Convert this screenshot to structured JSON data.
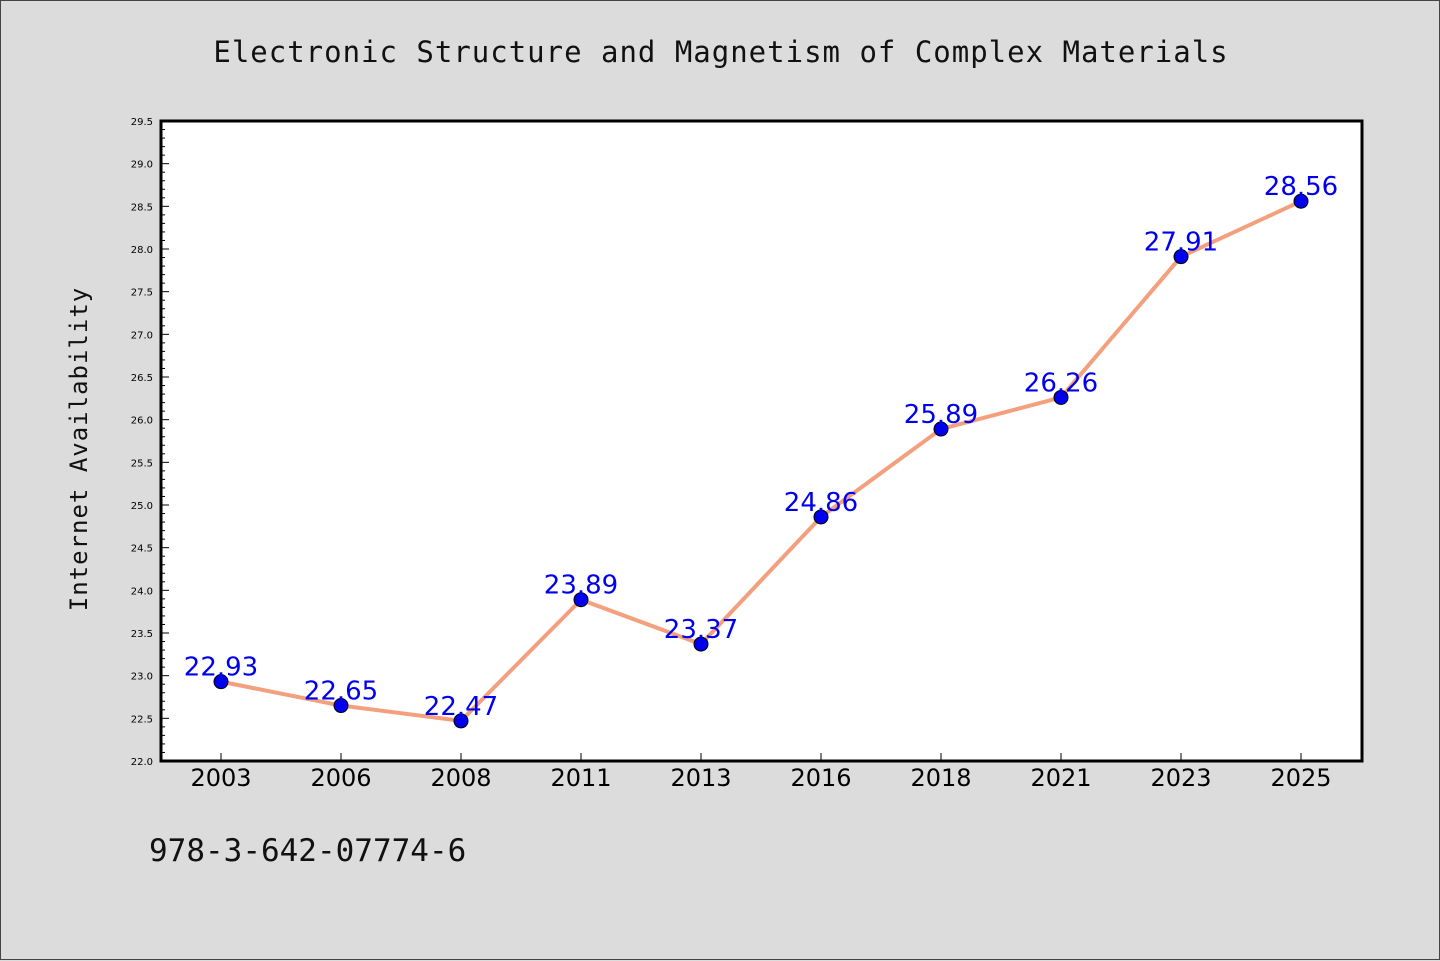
{
  "isbn": "978-3-642-07774-6",
  "colors": {
    "line": "#f4a07e",
    "marker": "#0000ee",
    "label": "#0000ee",
    "background": "#dcdcdc",
    "plot_bg": "#ffffff"
  },
  "chart_data": {
    "type": "line",
    "title": "Electronic Structure and Magnetism of Complex Materials",
    "xlabel": "",
    "ylabel": "Internet Availability",
    "categories": [
      "2003",
      "2006",
      "2008",
      "2011",
      "2013",
      "2016",
      "2018",
      "2021",
      "2023",
      "2025"
    ],
    "series": [
      {
        "values": [
          22.93,
          22.65,
          22.47,
          23.89,
          23.37,
          24.86,
          25.89,
          26.26,
          27.91,
          28.56
        ]
      }
    ],
    "data_labels": [
      "22.93",
      "22.65",
      "22.47",
      "23.89",
      "23.37",
      "24.86",
      "25.89",
      "26.26",
      "27.91",
      "28.56"
    ],
    "ylim": [
      22.0,
      29.5
    ],
    "yticks": [
      "22.0",
      "22.5",
      "23.0",
      "23.5",
      "24.0",
      "24.5",
      "25.0",
      "25.5",
      "26.0",
      "26.5",
      "27.0",
      "27.5",
      "28.0",
      "28.5",
      "29.0",
      "29.5"
    ],
    "grid": false,
    "legend": "none"
  }
}
